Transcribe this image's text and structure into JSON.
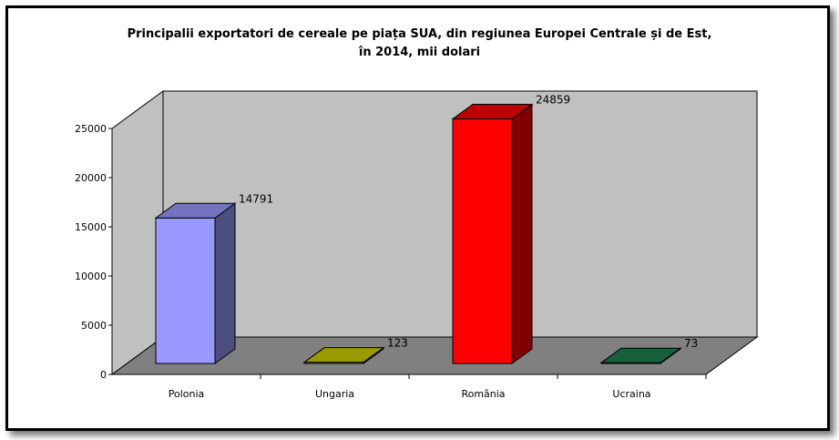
{
  "chart_data": {
    "type": "bar",
    "title_lines": [
      "Principalii exportatori de cereale pe piața SUA, din regiunea Europei Centrale și de Est,",
      "în 2014, mii dolari"
    ],
    "categories": [
      "Polonia",
      "Ungaria",
      "România",
      "Ucraina"
    ],
    "values": [
      14791,
      123,
      24859,
      73
    ],
    "colors": [
      "#9999ff",
      "#cccc00",
      "#ff0000",
      "#208050"
    ],
    "ylim": [
      0,
      25000
    ],
    "yticks": [
      0,
      5000,
      10000,
      15000,
      20000,
      25000
    ],
    "xlabel": "",
    "ylabel": "",
    "legend": "none",
    "grid": false,
    "style": "3d-column"
  }
}
